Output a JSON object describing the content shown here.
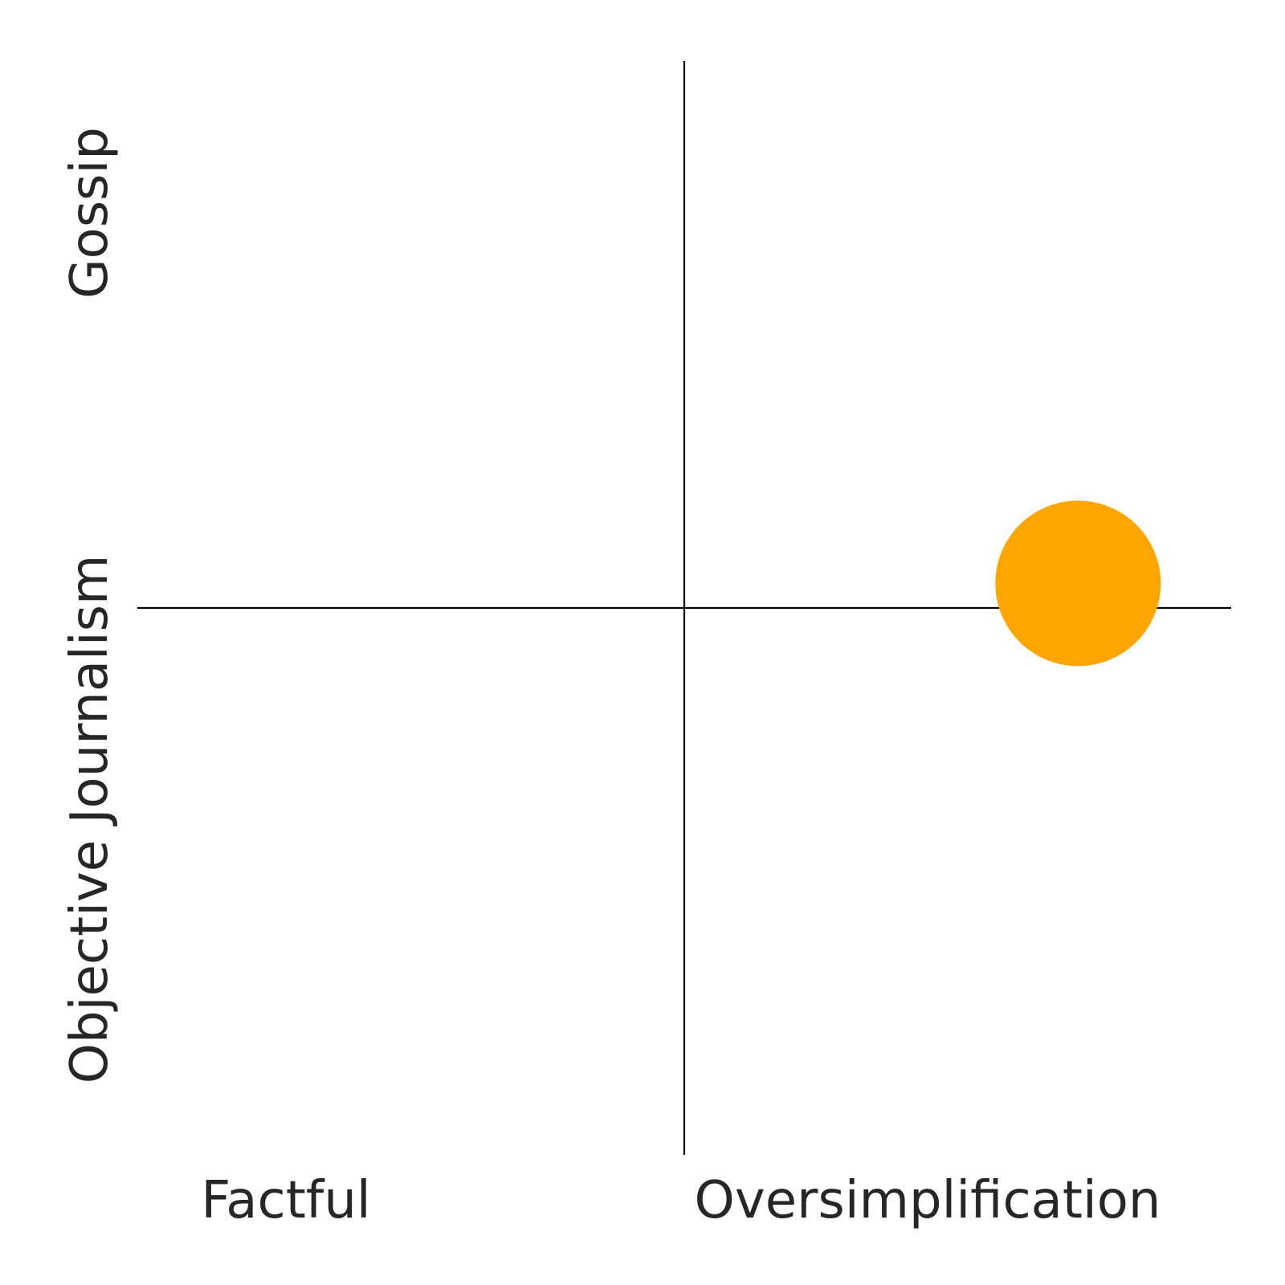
{
  "chart_data": {
    "type": "scatter",
    "title": "",
    "quadrant_labels": {
      "x_low": "Factful",
      "x_high": "Oversimplification",
      "y_low": "Objective Journalism",
      "y_high": "Gossip"
    },
    "xlim": [
      -1,
      1
    ],
    "ylim": [
      -1,
      1
    ],
    "grid": false,
    "legend": "none",
    "points": [
      {
        "x": 0.72,
        "y": 0.045,
        "color": "#FFA500",
        "shape": "circle"
      }
    ]
  }
}
